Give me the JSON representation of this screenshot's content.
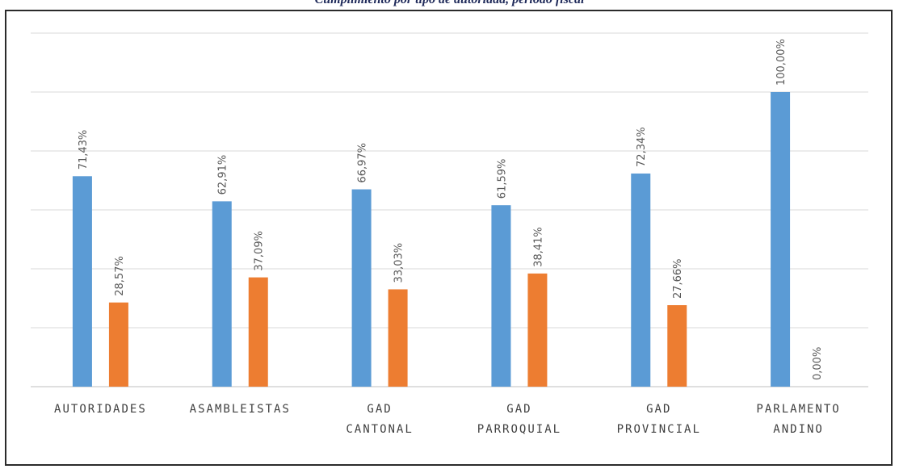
{
  "chart_data": {
    "type": "bar",
    "title": "Cumplimiento por tipo de autoridad, período fiscal",
    "categories": [
      [
        "AUTORIDADES"
      ],
      [
        "ASAMBLEISTAS"
      ],
      [
        "GAD",
        "CANTONAL"
      ],
      [
        "GAD",
        "PARROQUIAL"
      ],
      [
        "GAD",
        "PROVINCIAL"
      ],
      [
        "PARLAMENTO",
        "ANDINO"
      ]
    ],
    "series": [
      {
        "color": "#5b9bd5",
        "values": [
          71.43,
          62.91,
          66.97,
          61.59,
          72.34,
          100.0
        ],
        "labels": [
          "71,43%",
          "62,91%",
          "66,97%",
          "61,59%",
          "72,34%",
          "100,00%"
        ]
      },
      {
        "color": "#ed7d31",
        "values": [
          28.57,
          37.09,
          33.03,
          38.41,
          27.66,
          0.0
        ],
        "labels": [
          "28,57%",
          "37,09%",
          "33,03%",
          "38,41%",
          "27,66%",
          "0,00%"
        ]
      }
    ],
    "ylim": [
      0,
      120
    ],
    "grid": true,
    "gridline_count": 6,
    "legend": "none"
  }
}
